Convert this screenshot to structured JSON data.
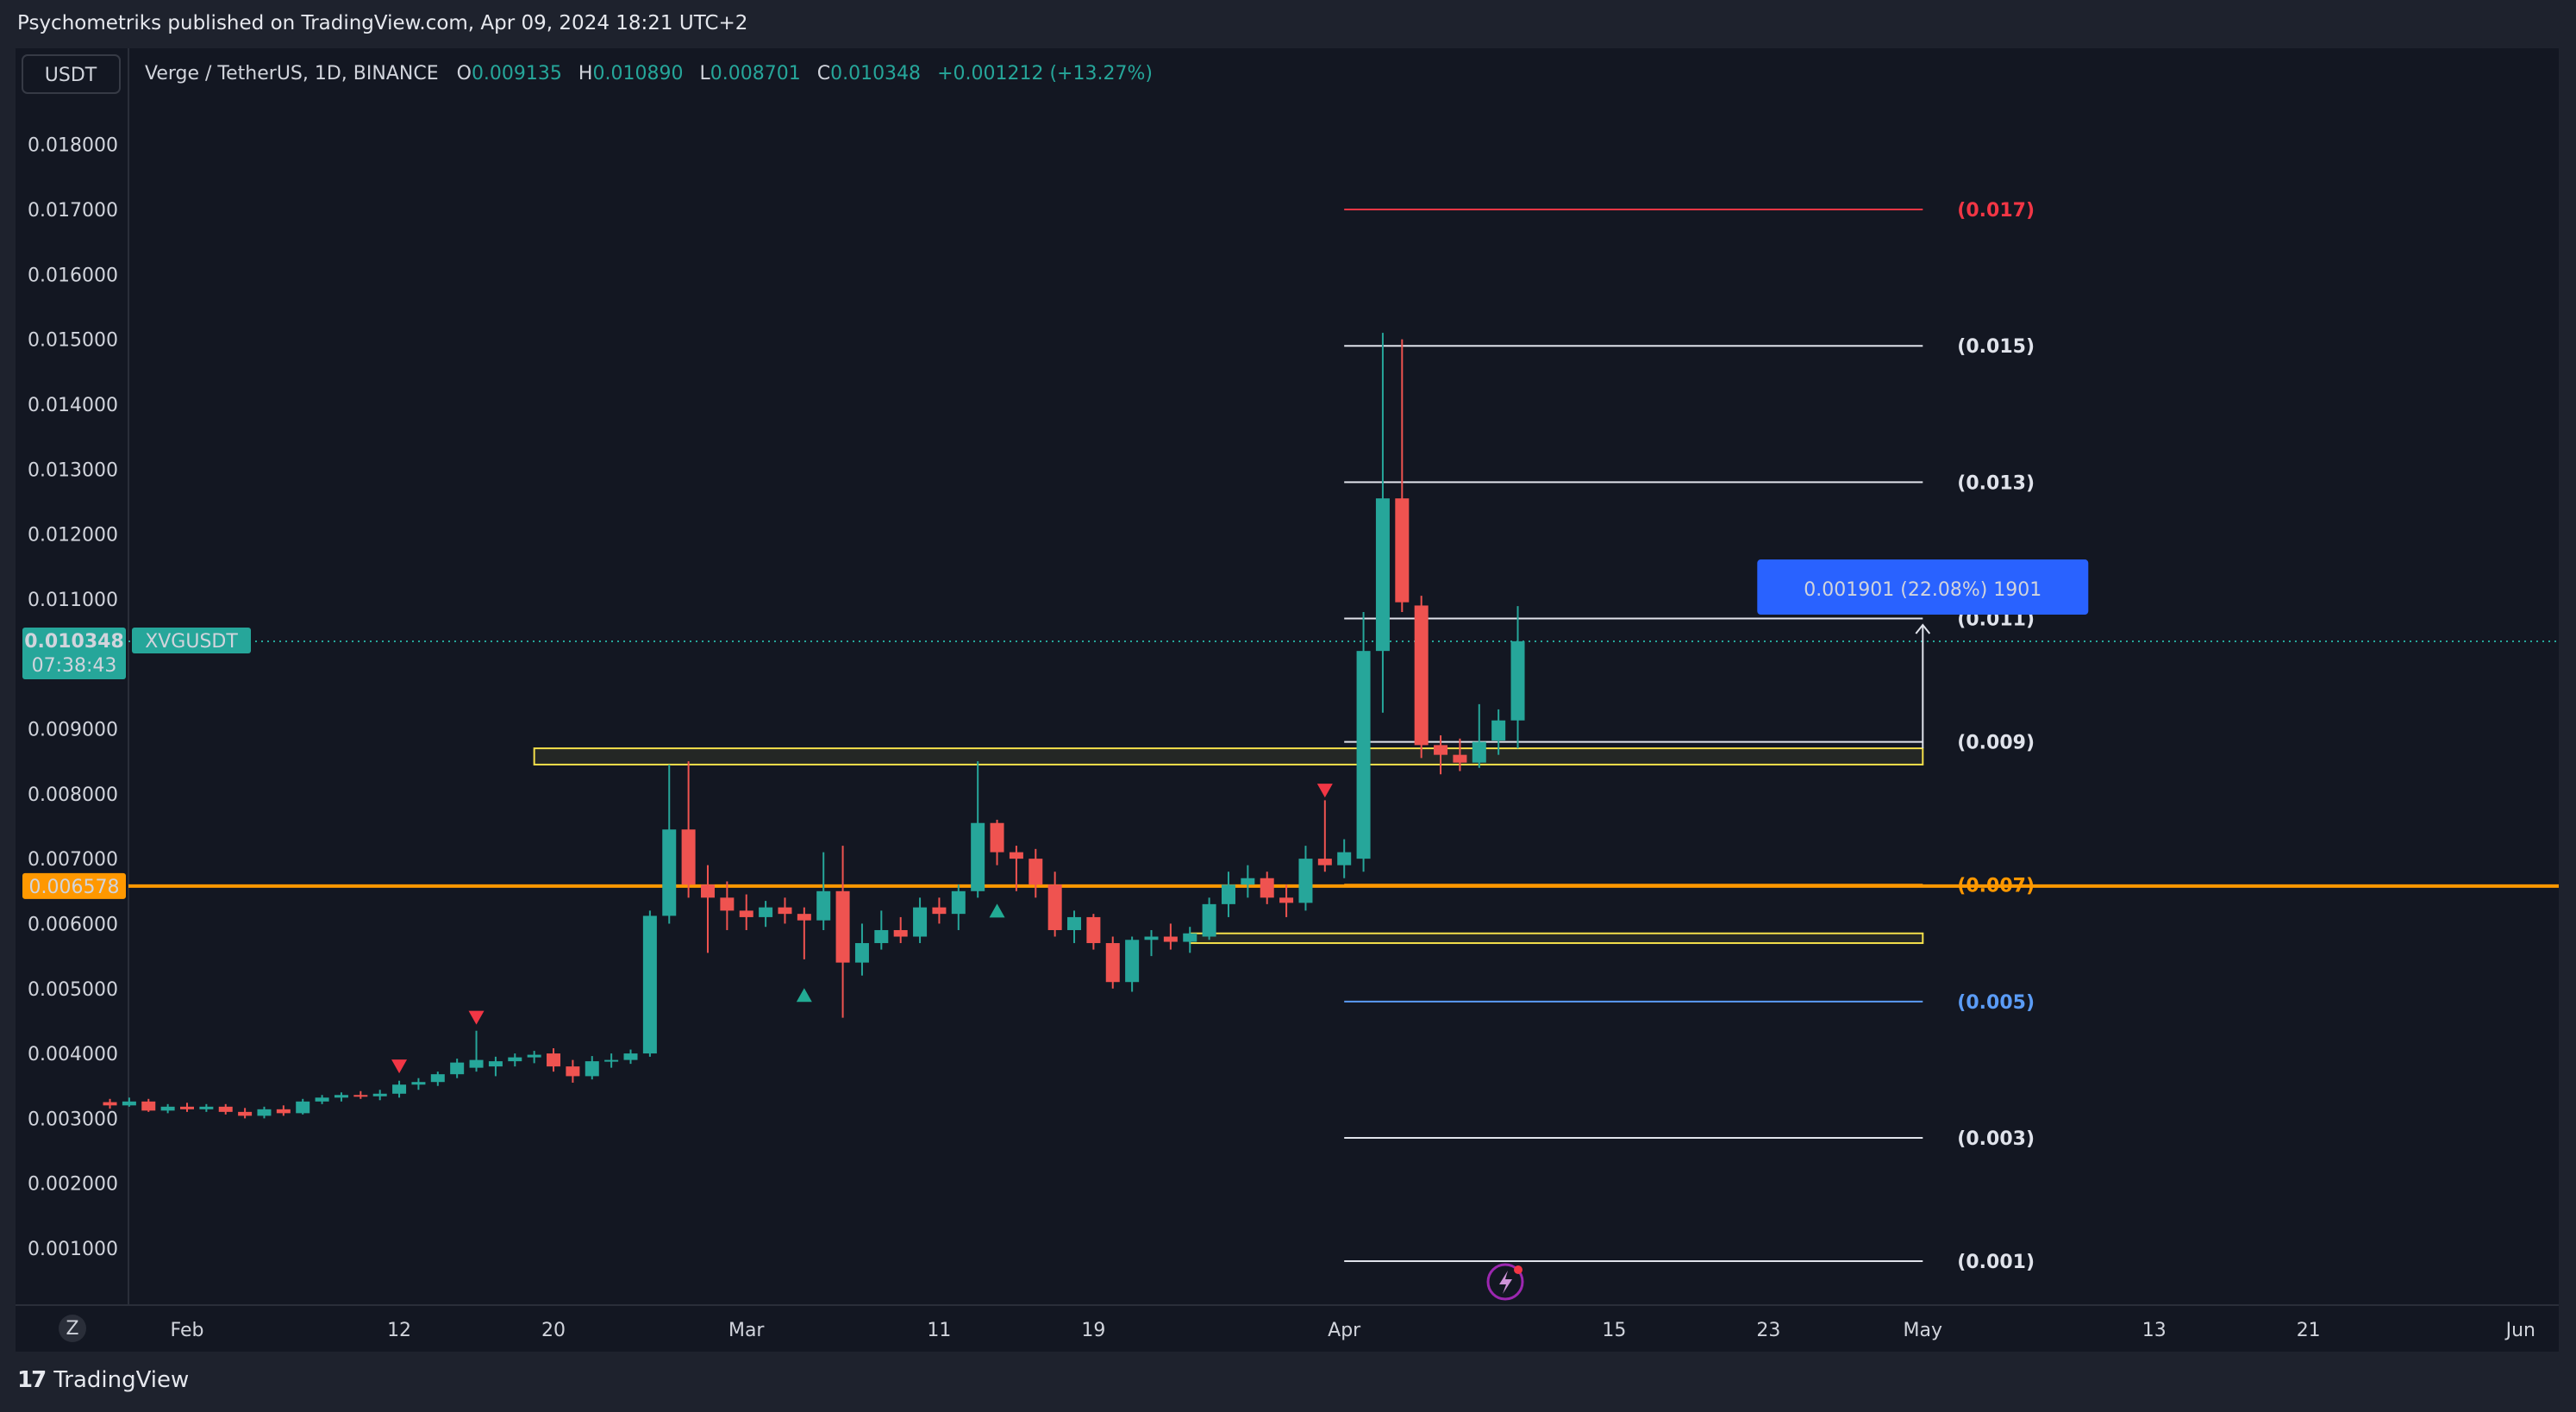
{
  "publish_line": "Psychometriks published on TradingView.com, Apr 09, 2024 18:21 UTC+2",
  "footer_brand": "TradingView",
  "footer_logo": "17",
  "currency_button": "USDT",
  "z_button": "Z",
  "legend": {
    "symbol": "Verge / TetherUS, 1D, BINANCE",
    "o_label": "O",
    "o_val": "0.009135",
    "h_label": "H",
    "h_val": "0.010890",
    "l_label": "L",
    "l_val": "0.008701",
    "c_label": "C",
    "c_val": "0.010348",
    "change": "+0.001212 (+13.27%)"
  },
  "price_tag": {
    "value": "0.010348",
    "countdown": "07:38:43",
    "symbol": "XVGUSDT"
  },
  "orange_tag": "0.006578",
  "measure_label": "0.001901 (22.08%) 1901",
  "colors": {
    "up": "#26a69a",
    "down": "#ef5350",
    "orange": "#ff9800",
    "yellow": "#f5e04b",
    "red_line": "#f23645",
    "blue_line": "#5b9cf6",
    "measure_bg": "#2962ff",
    "measure_text": "#ffb74d"
  },
  "chart_data": {
    "type": "candlestick",
    "symbol": "XVGUSDT",
    "ylim": [
      0.0,
      0.0185
    ],
    "yticks": [
      "0.018000",
      "0.017000",
      "0.016000",
      "0.015000",
      "0.014000",
      "0.013000",
      "0.012000",
      "0.011000",
      "0.009000",
      "0.008000",
      "0.007000",
      "0.006000",
      "0.005000",
      "0.004000",
      "0.003000",
      "0.002000",
      "0.001000"
    ],
    "ytick_values": [
      0.018,
      0.017,
      0.016,
      0.015,
      0.014,
      0.013,
      0.012,
      0.011,
      0.009,
      0.008,
      0.007,
      0.006,
      0.005,
      0.004,
      0.003,
      0.002,
      0.001
    ],
    "xticks": [
      {
        "label": "Feb",
        "date": "2024-02-01"
      },
      {
        "label": "12",
        "date": "2024-02-12"
      },
      {
        "label": "20",
        "date": "2024-02-20"
      },
      {
        "label": "Mar",
        "date": "2024-03-01"
      },
      {
        "label": "11",
        "date": "2024-03-11"
      },
      {
        "label": "19",
        "date": "2024-03-19"
      },
      {
        "label": "Apr",
        "date": "2024-04-01"
      },
      {
        "label": "15",
        "date": "2024-04-15"
      },
      {
        "label": "23",
        "date": "2024-04-23"
      },
      {
        "label": "May",
        "date": "2024-05-01"
      },
      {
        "label": "13",
        "date": "2024-05-13"
      },
      {
        "label": "21",
        "date": "2024-05-21"
      },
      {
        "label": "Jun",
        "date": "2024-06-01"
      }
    ],
    "candles": [
      {
        "d": "2024-01-28",
        "o": 0.00325,
        "h": 0.0033,
        "l": 0.00315,
        "c": 0.0032
      },
      {
        "d": "2024-01-29",
        "o": 0.0032,
        "h": 0.00332,
        "l": 0.00318,
        "c": 0.00326
      },
      {
        "d": "2024-01-30",
        "o": 0.00326,
        "h": 0.0033,
        "l": 0.0031,
        "c": 0.00312
      },
      {
        "d": "2024-01-31",
        "o": 0.00312,
        "h": 0.00322,
        "l": 0.00308,
        "c": 0.00318
      },
      {
        "d": "2024-02-01",
        "o": 0.00318,
        "h": 0.00324,
        "l": 0.0031,
        "c": 0.00314
      },
      {
        "d": "2024-02-02",
        "o": 0.00314,
        "h": 0.00322,
        "l": 0.0031,
        "c": 0.00318
      },
      {
        "d": "2024-02-03",
        "o": 0.00318,
        "h": 0.00322,
        "l": 0.00306,
        "c": 0.0031
      },
      {
        "d": "2024-02-04",
        "o": 0.0031,
        "h": 0.00316,
        "l": 0.003,
        "c": 0.00304
      },
      {
        "d": "2024-02-05",
        "o": 0.00304,
        "h": 0.00318,
        "l": 0.003,
        "c": 0.00314
      },
      {
        "d": "2024-02-06",
        "o": 0.00314,
        "h": 0.0032,
        "l": 0.00304,
        "c": 0.00308
      },
      {
        "d": "2024-02-07",
        "o": 0.00308,
        "h": 0.0033,
        "l": 0.00306,
        "c": 0.00326
      },
      {
        "d": "2024-02-08",
        "o": 0.00326,
        "h": 0.00336,
        "l": 0.00322,
        "c": 0.00332
      },
      {
        "d": "2024-02-09",
        "o": 0.00332,
        "h": 0.0034,
        "l": 0.00326,
        "c": 0.00336
      },
      {
        "d": "2024-02-10",
        "o": 0.00336,
        "h": 0.00342,
        "l": 0.0033,
        "c": 0.00334
      },
      {
        "d": "2024-02-11",
        "o": 0.00334,
        "h": 0.00344,
        "l": 0.00328,
        "c": 0.00338
      },
      {
        "d": "2024-02-12",
        "o": 0.00338,
        "h": 0.00358,
        "l": 0.00332,
        "c": 0.00352
      },
      {
        "d": "2024-02-13",
        "o": 0.00352,
        "h": 0.00362,
        "l": 0.00344,
        "c": 0.00356
      },
      {
        "d": "2024-02-14",
        "o": 0.00356,
        "h": 0.00372,
        "l": 0.0035,
        "c": 0.00368
      },
      {
        "d": "2024-02-15",
        "o": 0.00368,
        "h": 0.00392,
        "l": 0.00362,
        "c": 0.00386
      },
      {
        "d": "2024-02-16",
        "o": 0.00378,
        "h": 0.00435,
        "l": 0.00372,
        "c": 0.0039
      },
      {
        "d": "2024-02-17",
        "o": 0.0038,
        "h": 0.00395,
        "l": 0.00365,
        "c": 0.00388
      },
      {
        "d": "2024-02-18",
        "o": 0.00388,
        "h": 0.004,
        "l": 0.0038,
        "c": 0.00394
      },
      {
        "d": "2024-02-19",
        "o": 0.00394,
        "h": 0.00404,
        "l": 0.00385,
        "c": 0.00398
      },
      {
        "d": "2024-02-20",
        "o": 0.004,
        "h": 0.00408,
        "l": 0.00372,
        "c": 0.0038
      },
      {
        "d": "2024-02-21",
        "o": 0.0038,
        "h": 0.0039,
        "l": 0.00355,
        "c": 0.00365
      },
      {
        "d": "2024-02-22",
        "o": 0.00365,
        "h": 0.00396,
        "l": 0.0036,
        "c": 0.00388
      },
      {
        "d": "2024-02-23",
        "o": 0.00388,
        "h": 0.004,
        "l": 0.00378,
        "c": 0.0039
      },
      {
        "d": "2024-02-24",
        "o": 0.0039,
        "h": 0.00406,
        "l": 0.00384,
        "c": 0.004
      },
      {
        "d": "2024-02-25",
        "o": 0.004,
        "h": 0.0062,
        "l": 0.00395,
        "c": 0.00612
      },
      {
        "d": "2024-02-26",
        "o": 0.00612,
        "h": 0.00845,
        "l": 0.006,
        "c": 0.00745
      },
      {
        "d": "2024-02-27",
        "o": 0.00745,
        "h": 0.0085,
        "l": 0.0064,
        "c": 0.0066
      },
      {
        "d": "2024-02-28",
        "o": 0.0066,
        "h": 0.0069,
        "l": 0.00555,
        "c": 0.0064
      },
      {
        "d": "2024-02-29",
        "o": 0.0064,
        "h": 0.00665,
        "l": 0.0059,
        "c": 0.0062
      },
      {
        "d": "2024-03-01",
        "o": 0.0062,
        "h": 0.00645,
        "l": 0.0059,
        "c": 0.0061
      },
      {
        "d": "2024-03-02",
        "o": 0.0061,
        "h": 0.00635,
        "l": 0.00595,
        "c": 0.00625
      },
      {
        "d": "2024-03-03",
        "o": 0.00625,
        "h": 0.0064,
        "l": 0.006,
        "c": 0.00615
      },
      {
        "d": "2024-03-04",
        "o": 0.00615,
        "h": 0.00625,
        "l": 0.00545,
        "c": 0.00605
      },
      {
        "d": "2024-03-05",
        "o": 0.00605,
        "h": 0.0071,
        "l": 0.0059,
        "c": 0.0065
      },
      {
        "d": "2024-03-06",
        "o": 0.0065,
        "h": 0.0072,
        "l": 0.00455,
        "c": 0.0054
      },
      {
        "d": "2024-03-07",
        "o": 0.0054,
        "h": 0.006,
        "l": 0.0052,
        "c": 0.0057
      },
      {
        "d": "2024-03-08",
        "o": 0.0057,
        "h": 0.0062,
        "l": 0.0056,
        "c": 0.0059
      },
      {
        "d": "2024-03-09",
        "o": 0.0059,
        "h": 0.0061,
        "l": 0.0057,
        "c": 0.0058
      },
      {
        "d": "2024-03-10",
        "o": 0.0058,
        "h": 0.0064,
        "l": 0.0057,
        "c": 0.00625
      },
      {
        "d": "2024-03-11",
        "o": 0.00625,
        "h": 0.0064,
        "l": 0.006,
        "c": 0.00615
      },
      {
        "d": "2024-03-12",
        "o": 0.00615,
        "h": 0.0066,
        "l": 0.0059,
        "c": 0.0065
      },
      {
        "d": "2024-03-13",
        "o": 0.0065,
        "h": 0.0085,
        "l": 0.0064,
        "c": 0.00755
      },
      {
        "d": "2024-03-14",
        "o": 0.00755,
        "h": 0.0076,
        "l": 0.0069,
        "c": 0.0071
      },
      {
        "d": "2024-03-15",
        "o": 0.0071,
        "h": 0.0072,
        "l": 0.0065,
        "c": 0.007
      },
      {
        "d": "2024-03-16",
        "o": 0.007,
        "h": 0.00715,
        "l": 0.0064,
        "c": 0.0066
      },
      {
        "d": "2024-03-17",
        "o": 0.0066,
        "h": 0.0068,
        "l": 0.0058,
        "c": 0.0059
      },
      {
        "d": "2024-03-18",
        "o": 0.0059,
        "h": 0.0062,
        "l": 0.0057,
        "c": 0.0061
      },
      {
        "d": "2024-03-19",
        "o": 0.0061,
        "h": 0.00615,
        "l": 0.0056,
        "c": 0.0057
      },
      {
        "d": "2024-03-20",
        "o": 0.0057,
        "h": 0.0058,
        "l": 0.005,
        "c": 0.0051
      },
      {
        "d": "2024-03-21",
        "o": 0.0051,
        "h": 0.0058,
        "l": 0.00495,
        "c": 0.00575
      },
      {
        "d": "2024-03-22",
        "o": 0.00575,
        "h": 0.0059,
        "l": 0.0055,
        "c": 0.0058
      },
      {
        "d": "2024-03-23",
        "o": 0.0058,
        "h": 0.006,
        "l": 0.0056,
        "c": 0.00572
      },
      {
        "d": "2024-03-24",
        "o": 0.00572,
        "h": 0.00595,
        "l": 0.00555,
        "c": 0.00585
      },
      {
        "d": "2024-03-25",
        "o": 0.0058,
        "h": 0.0064,
        "l": 0.00575,
        "c": 0.0063
      },
      {
        "d": "2024-03-26",
        "o": 0.0063,
        "h": 0.0068,
        "l": 0.0061,
        "c": 0.0066
      },
      {
        "d": "2024-03-27",
        "o": 0.0066,
        "h": 0.0069,
        "l": 0.0064,
        "c": 0.0067
      },
      {
        "d": "2024-03-28",
        "o": 0.0067,
        "h": 0.0068,
        "l": 0.0063,
        "c": 0.0064
      },
      {
        "d": "2024-03-29",
        "o": 0.0064,
        "h": 0.0066,
        "l": 0.0061,
        "c": 0.00632
      },
      {
        "d": "2024-03-30",
        "o": 0.00632,
        "h": 0.0072,
        "l": 0.0062,
        "c": 0.007
      },
      {
        "d": "2024-03-31",
        "o": 0.007,
        "h": 0.0079,
        "l": 0.0068,
        "c": 0.0069
      },
      {
        "d": "2024-04-01",
        "o": 0.0069,
        "h": 0.0073,
        "l": 0.0067,
        "c": 0.0071
      },
      {
        "d": "2024-04-02",
        "o": 0.007,
        "h": 0.0108,
        "l": 0.0068,
        "c": 0.0102
      },
      {
        "d": "2024-04-03",
        "o": 0.0102,
        "h": 0.0151,
        "l": 0.00925,
        "c": 0.01255
      },
      {
        "d": "2024-04-04",
        "o": 0.01255,
        "h": 0.015,
        "l": 0.0108,
        "c": 0.01095
      },
      {
        "d": "2024-04-05",
        "o": 0.0109,
        "h": 0.01105,
        "l": 0.00855,
        "c": 0.00875
      },
      {
        "d": "2024-04-06",
        "o": 0.00875,
        "h": 0.0089,
        "l": 0.0083,
        "c": 0.0086
      },
      {
        "d": "2024-04-07",
        "o": 0.0086,
        "h": 0.00885,
        "l": 0.00835,
        "c": 0.00848
      },
      {
        "d": "2024-04-08",
        "o": 0.00848,
        "h": 0.00938,
        "l": 0.0084,
        "c": 0.0088
      },
      {
        "d": "2024-04-09",
        "o": 0.00882,
        "h": 0.0093,
        "l": 0.0086,
        "c": 0.00913
      },
      {
        "d": "2024-04-10",
        "o": 0.00913,
        "h": 0.01089,
        "l": 0.0087,
        "c": 0.01035
      }
    ],
    "horizontal_levels": [
      {
        "price": 0.017,
        "label": "(0.017)",
        "color": "#f23645"
      },
      {
        "price": 0.0149,
        "label": "(0.015)",
        "color": "#e0e3eb"
      },
      {
        "price": 0.0128,
        "label": "(0.013)",
        "color": "#e0e3eb"
      },
      {
        "price": 0.0107,
        "label": "(0.011)",
        "color": "#e0e3eb"
      },
      {
        "price": 0.0088,
        "label": "(0.009)",
        "color": "#e0e3eb"
      },
      {
        "price": 0.0066,
        "label": "(0.007)",
        "color": "#ff9800"
      },
      {
        "price": 0.0048,
        "label": "(0.005)",
        "color": "#5b9cf6"
      },
      {
        "price": 0.0027,
        "label": "(0.003)",
        "color": "#e0e3eb"
      },
      {
        "price": 0.0008,
        "label": "(0.001)",
        "color": "#e0e3eb"
      }
    ],
    "orange_line": 0.006578,
    "current_price": 0.010348,
    "zones": [
      {
        "from": "2024-02-19",
        "to": "2024-05-01",
        "low": 0.00845,
        "high": 0.0087
      },
      {
        "from": "2024-03-24",
        "to": "2024-05-01",
        "low": 0.0057,
        "high": 0.00585
      }
    ],
    "signals": [
      {
        "d": "2024-02-12",
        "price": 0.0038,
        "dir": "down"
      },
      {
        "d": "2024-02-16",
        "price": 0.00455,
        "dir": "down"
      },
      {
        "d": "2024-03-04",
        "price": 0.0049,
        "dir": "up"
      },
      {
        "d": "2024-03-14",
        "price": 0.0062,
        "dir": "up"
      },
      {
        "d": "2024-03-31",
        "price": 0.00805,
        "dir": "down"
      }
    ],
    "measure": {
      "date": "2024-05-01",
      "from": 0.0087,
      "to": 0.0106
    }
  }
}
